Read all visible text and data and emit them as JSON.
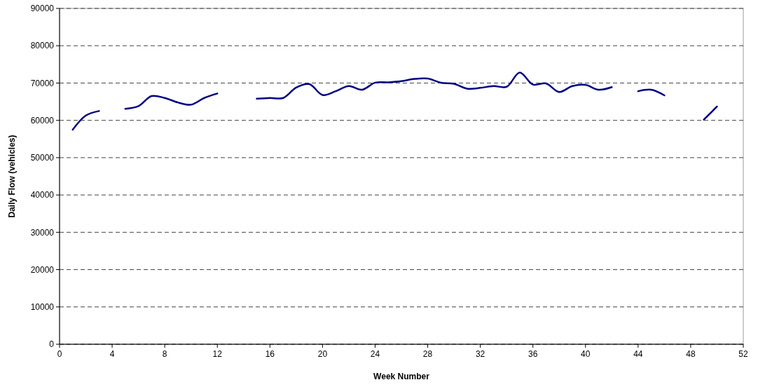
{
  "chart_data": {
    "type": "line",
    "xlabel": "Week Number",
    "ylabel": "Daily Flow (vehicles)",
    "x": [
      1,
      2,
      3,
      4,
      5,
      6,
      7,
      8,
      9,
      10,
      11,
      12,
      13,
      14,
      15,
      16,
      17,
      18,
      19,
      20,
      21,
      22,
      23,
      24,
      25,
      26,
      27,
      28,
      29,
      30,
      31,
      32,
      33,
      34,
      35,
      36,
      37,
      38,
      39,
      40,
      41,
      42,
      43,
      44,
      45,
      46,
      47,
      48,
      49,
      50
    ],
    "series": [
      {
        "color": "#000080",
        "values": [
          57500,
          61300,
          62500,
          null,
          63100,
          63800,
          66500,
          66000,
          64800,
          64200,
          66000,
          67200,
          null,
          null,
          65800,
          66000,
          66000,
          68800,
          69700,
          66800,
          67800,
          69200,
          68200,
          70100,
          70200,
          70500,
          71100,
          71200,
          70100,
          69800,
          68500,
          68700,
          69200,
          69000,
          72800,
          69600,
          69900,
          67600,
          69200,
          69500,
          68200,
          68900,
          null,
          67800,
          68200,
          66700,
          null,
          null,
          60200,
          63700
        ]
      }
    ],
    "xlim": [
      0,
      52
    ],
    "xticks": [
      0,
      4,
      8,
      12,
      16,
      20,
      24,
      28,
      32,
      36,
      40,
      44,
      48,
      52
    ],
    "ylim": [
      0,
      90000
    ],
    "yticks": [
      0,
      10000,
      20000,
      30000,
      40000,
      50000,
      60000,
      70000,
      80000,
      90000
    ],
    "grid": "y",
    "marker": "none",
    "line_style": "solid"
  }
}
